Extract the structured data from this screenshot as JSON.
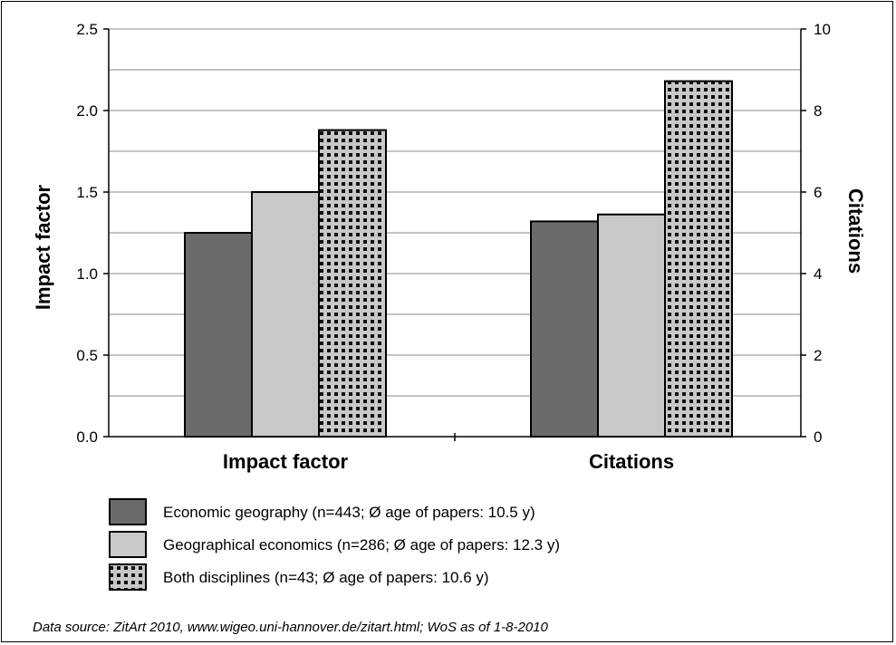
{
  "chart_data": {
    "type": "bar",
    "categories": [
      "Impact factor",
      "Citations"
    ],
    "left_axis": {
      "label": "Impact factor",
      "ylim": [
        0,
        2.5
      ],
      "ticks": [
        "0.0",
        "0.5",
        "1.0",
        "1.5",
        "2.0",
        "2.5"
      ],
      "minor_step": 0.25
    },
    "right_axis": {
      "label": "Citations",
      "ylim": [
        0,
        10
      ],
      "ticks": [
        "0",
        "2",
        "4",
        "6",
        "8",
        "10"
      ]
    },
    "series": [
      {
        "name": "Economic geography (n=443; Ø age of papers: 10.5 y)",
        "fill": "#6b6b6b",
        "pattern": "solid",
        "values": [
          1.25,
          5.28
        ]
      },
      {
        "name": "Geographical economics (n=286; Ø age of papers: 12.3 y)",
        "fill": "#c8c8c8",
        "pattern": "solid",
        "values": [
          1.5,
          5.45
        ]
      },
      {
        "name": "Both disciplines (n=43; Ø age of papers: 10.6 y)",
        "fill": "#c8c8c8",
        "pattern": "dots",
        "values": [
          1.88,
          8.72
        ]
      }
    ],
    "series_axis": [
      "left",
      "right"
    ],
    "grid": true,
    "legend_position": "bottom"
  },
  "footnote": "Data source: ZitArt 2010, www.wigeo.uni-hannover.de/zitart.html; WoS as of 1-8-2010"
}
